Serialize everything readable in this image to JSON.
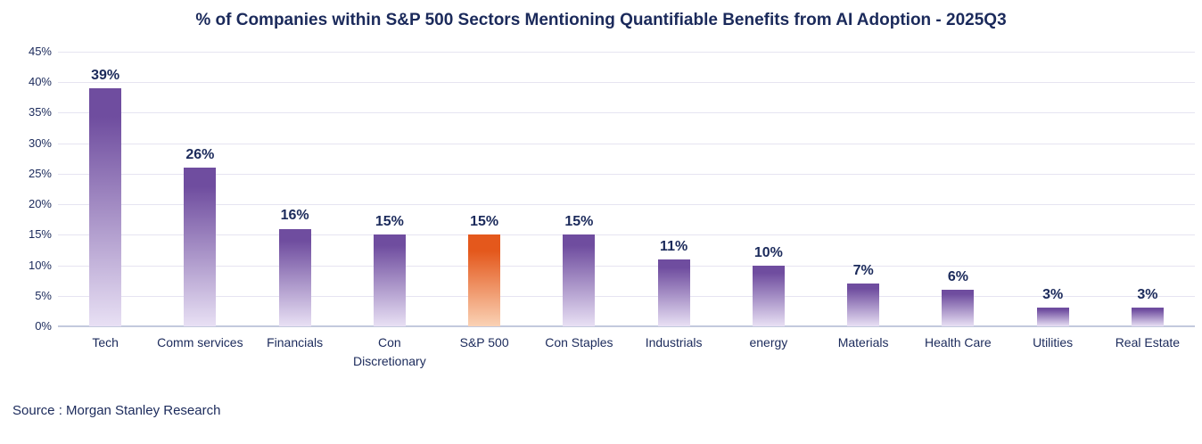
{
  "source": "Source : Morgan Stanley Research",
  "colors": {
    "title_text": "#1b2a5b",
    "axis_text": "#1b2a5b",
    "value_label_text": "#1b2a5b",
    "bar_purple_top": "#6f4d9f",
    "bar_purple_bottom": "#e8e0f4",
    "bar_orange_top": "#e4581c",
    "bar_orange_bottom": "#fad2b5",
    "gridline": "#e6e4f1",
    "baseline": "#c3c9dd",
    "background": "#ffffff"
  },
  "chart_data": {
    "type": "bar",
    "title": "% of Companies within S&P 500 Sectors Mentioning Quantifiable Benefits from AI Adoption - 2025Q3",
    "categories": [
      "Tech",
      "Comm services",
      "Financials",
      "Con Discretionary",
      "S&P 500",
      "Con Staples",
      "Industrials",
      "energy",
      "Materials",
      "Health Care",
      "Utilities",
      "Real Estate"
    ],
    "values": [
      39,
      26,
      16,
      15,
      15,
      15,
      11,
      10,
      7,
      6,
      3,
      3
    ],
    "value_labels": [
      "39%",
      "26%",
      "16%",
      "15%",
      "15%",
      "15%",
      "11%",
      "10%",
      "7%",
      "6%",
      "3%",
      "3%"
    ],
    "highlight_index": 4,
    "highlight_category": "S&P 500",
    "xlabel": "",
    "ylabel": "",
    "ylim": [
      0,
      45
    ],
    "ytick_step": 5,
    "ytick_labels": [
      "0%",
      "5%",
      "10%",
      "15%",
      "20%",
      "25%",
      "30%",
      "35%",
      "40%",
      "45%"
    ],
    "grid": "horizontal",
    "legend": "none"
  }
}
